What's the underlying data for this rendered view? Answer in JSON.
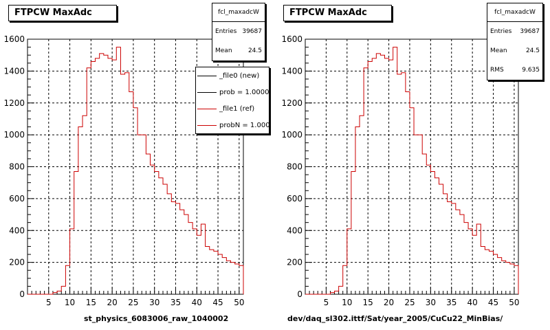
{
  "colors": {
    "hist": "#cc0000",
    "frame": "#000000",
    "grid": "#000000"
  },
  "left": {
    "title": "FTPCW MaxAdc",
    "stats": {
      "name": "fcl_maxadcW",
      "rows": [
        {
          "label": "Entries",
          "value": "39687"
        },
        {
          "label": "Mean",
          "value": "24.5"
        }
      ]
    },
    "legend": [
      {
        "text": "_file0 (new)",
        "color": "#000000"
      },
      {
        "text": "prob = 1.000000",
        "color": "#000000"
      },
      {
        "text": "_file1 (ref)",
        "color": "#cc0000"
      },
      {
        "text": "probN = 1.000000",
        "color": "#cc0000"
      }
    ],
    "footer": "st_physics_6083006_raw_1040002"
  },
  "right": {
    "title": "FTPCW MaxAdc",
    "stats": {
      "name": "fcl_maxadcW",
      "rows": [
        {
          "label": "Entries",
          "value": "39687"
        },
        {
          "label": "Mean",
          "value": "24.5"
        },
        {
          "label": "RMS",
          "value": "9.635"
        }
      ]
    },
    "footer": "dev/daq_sl302.ittf/Sat/year_2005/CuCu22_MinBias/"
  },
  "chart_data": [
    {
      "type": "bar",
      "title": "FTPCW MaxAdc",
      "xlabel": "",
      "ylabel": "",
      "xlim": [
        0,
        51
      ],
      "ylim": [
        0,
        1600
      ],
      "xticks": [
        5,
        10,
        15,
        20,
        25,
        30,
        35,
        40,
        45,
        50
      ],
      "yticks": [
        0,
        200,
        400,
        600,
        800,
        1000,
        1200,
        1400,
        1600
      ],
      "grid": true,
      "bin_edges_start": 0,
      "bin_width": 1,
      "values": [
        0,
        0,
        0,
        0,
        0,
        0,
        10,
        20,
        50,
        180,
        410,
        770,
        1050,
        1120,
        1420,
        1460,
        1480,
        1510,
        1500,
        1480,
        1470,
        1550,
        1380,
        1390,
        1270,
        1170,
        1000,
        1000,
        880,
        810,
        770,
        730,
        690,
        630,
        580,
        570,
        530,
        500,
        450,
        410,
        370,
        440,
        300,
        280,
        270,
        250,
        230,
        210,
        200,
        190,
        180
      ]
    },
    {
      "type": "bar",
      "title": "FTPCW MaxAdc",
      "xlabel": "",
      "ylabel": "",
      "xlim": [
        0,
        51
      ],
      "ylim": [
        0,
        1600
      ],
      "xticks": [
        5,
        10,
        15,
        20,
        25,
        30,
        35,
        40,
        45,
        50
      ],
      "yticks": [
        0,
        200,
        400,
        600,
        800,
        1000,
        1200,
        1400,
        1600
      ],
      "grid": true,
      "bin_edges_start": 0,
      "bin_width": 1,
      "values": [
        0,
        0,
        0,
        0,
        0,
        0,
        10,
        20,
        50,
        180,
        410,
        770,
        1050,
        1120,
        1420,
        1460,
        1480,
        1510,
        1500,
        1480,
        1470,
        1550,
        1380,
        1390,
        1270,
        1170,
        1000,
        1000,
        880,
        810,
        770,
        730,
        690,
        630,
        580,
        570,
        530,
        500,
        450,
        410,
        370,
        440,
        300,
        280,
        270,
        250,
        230,
        210,
        200,
        190,
        180
      ]
    }
  ]
}
